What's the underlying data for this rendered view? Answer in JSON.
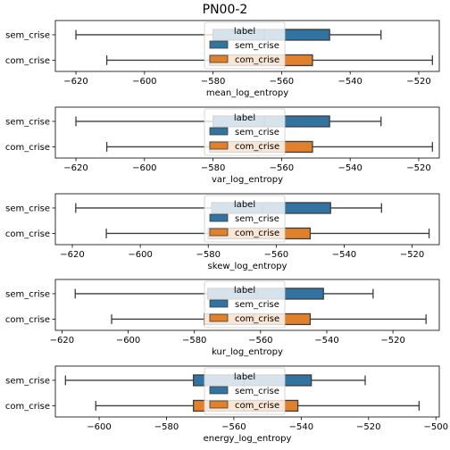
{
  "figure_title": "PN00-2",
  "chart_data": [
    {
      "type": "boxplot",
      "orientation": "horizontal",
      "xlabel": "mean_log_entropy",
      "categories": [
        "sem_crise",
        "com_crise"
      ],
      "xlim": [
        -626,
        -514
      ],
      "xticks": [
        -620,
        -600,
        -580,
        -560,
        -540,
        -520
      ],
      "series": [
        {
          "name": "sem_crise",
          "min": -620,
          "q1": -580,
          "median": -565,
          "q3": -546,
          "max": -531
        },
        {
          "name": "com_crise",
          "min": -611,
          "q1": -581,
          "median": -566,
          "q3": -551,
          "max": -516
        }
      ],
      "legend": {
        "title": "label",
        "entries": [
          "sem_crise",
          "com_crise"
        ],
        "placement": "center"
      }
    },
    {
      "type": "boxplot",
      "orientation": "horizontal",
      "xlabel": "var_log_entropy",
      "categories": [
        "sem_crise",
        "com_crise"
      ],
      "xlim": [
        -626,
        -514
      ],
      "xticks": [
        -620,
        -600,
        -580,
        -560,
        -540,
        -520
      ],
      "series": [
        {
          "name": "sem_crise",
          "min": -620,
          "q1": -580,
          "median": -565,
          "q3": -546,
          "max": -531
        },
        {
          "name": "com_crise",
          "min": -611,
          "q1": -581,
          "median": -566,
          "q3": -551,
          "max": -516
        }
      ],
      "legend": {
        "title": "label",
        "entries": [
          "sem_crise",
          "com_crise"
        ],
        "placement": "center"
      }
    },
    {
      "type": "boxplot",
      "orientation": "horizontal",
      "xlabel": "skew_log_entropy",
      "categories": [
        "sem_crise",
        "com_crise"
      ],
      "xlim": [
        -625,
        -512
      ],
      "xticks": [
        -620,
        -600,
        -580,
        -560,
        -540,
        -520
      ],
      "series": [
        {
          "name": "sem_crise",
          "min": -619,
          "q1": -579,
          "median": -564,
          "q3": -544,
          "max": -529
        },
        {
          "name": "com_crise",
          "min": -610,
          "q1": -580,
          "median": -565,
          "q3": -550,
          "max": -515
        }
      ],
      "legend": {
        "title": "label",
        "entries": [
          "sem_crise",
          "com_crise"
        ],
        "placement": "center"
      }
    },
    {
      "type": "boxplot",
      "orientation": "horizontal",
      "xlabel": "kur_log_entropy",
      "categories": [
        "sem_crise",
        "com_crise"
      ],
      "xlim": [
        -622,
        -506
      ],
      "xticks": [
        -620,
        -600,
        -580,
        -560,
        -540,
        -520
      ],
      "series": [
        {
          "name": "sem_crise",
          "min": -616,
          "q1": -576,
          "median": -561,
          "q3": -541,
          "max": -526
        },
        {
          "name": "com_crise",
          "min": -605,
          "q1": -577,
          "median": -562,
          "q3": -545,
          "max": -510
        }
      ],
      "legend": {
        "title": "label",
        "entries": [
          "sem_crise",
          "com_crise"
        ],
        "placement": "center"
      }
    },
    {
      "type": "boxplot",
      "orientation": "horizontal",
      "xlabel": "energy_log_entropy",
      "categories": [
        "sem_crise",
        "com_crise"
      ],
      "xlim": [
        -613,
        -499
      ],
      "xticks": [
        -600,
        -580,
        -560,
        -540,
        -520,
        -500
      ],
      "series": [
        {
          "name": "sem_crise",
          "min": -610,
          "q1": -572,
          "median": -557,
          "q3": -537,
          "max": -521
        },
        {
          "name": "com_crise",
          "min": -601,
          "q1": -572,
          "median": -557,
          "q3": -541,
          "max": -505
        }
      ],
      "legend": {
        "title": "label",
        "entries": [
          "sem_crise",
          "com_crise"
        ],
        "placement": "center"
      }
    }
  ],
  "colors": {
    "sem_crise": "#3274a1",
    "com_crise": "#e1812c",
    "whisker": "#3d3d3d",
    "axis": "#000000",
    "legend_bg": "#ffffff",
    "legend_border": "#cccccc"
  }
}
